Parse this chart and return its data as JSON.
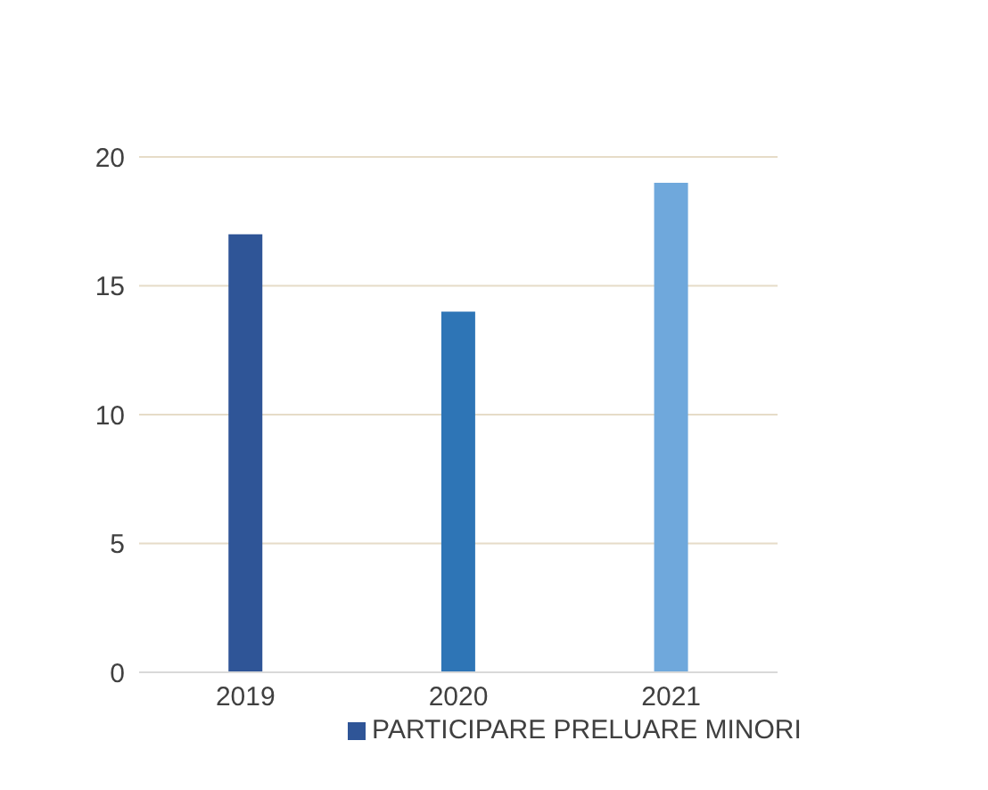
{
  "chart_data": {
    "type": "bar",
    "categories": [
      "2019",
      "2020",
      "2021"
    ],
    "series": [
      {
        "name": "PARTICIPARE PRELUARE MINORI",
        "colors": [
          "#2f5597",
          "#2e75b6",
          "#6fa8dc"
        ],
        "values": [
          17,
          14,
          19
        ]
      }
    ],
    "ylim": [
      0,
      20
    ],
    "yticks": [
      0,
      5,
      10,
      15,
      20
    ],
    "grid": "y",
    "legend": "bottom"
  }
}
